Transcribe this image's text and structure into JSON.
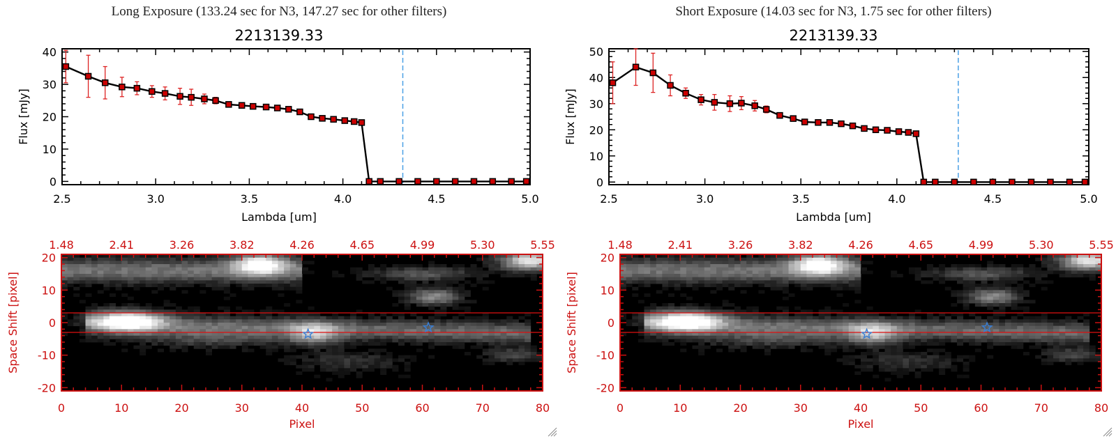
{
  "chart_data": [
    {
      "type": "line",
      "title": "Long Exposure (133.24 sec for N3, 147.27 sec for other filters)",
      "subtitle": "2213139.33",
      "xlabel": "Lambda [um]",
      "ylabel": "Flux [mJy]",
      "xlim": [
        2.5,
        5.0
      ],
      "ylim": [
        -1,
        41
      ],
      "xticks": [
        "2.5",
        "3.0",
        "3.5",
        "4.0",
        "4.5",
        "5.0"
      ],
      "yticks": [
        "0",
        "10",
        "20",
        "30",
        "40"
      ],
      "vline_x": 4.32,
      "grid": false,
      "line_color": "#000000",
      "marker_color": "#cc0000",
      "error_color": "#dd2222",
      "vline_color": "#4aa0e6",
      "x": [
        2.52,
        2.64,
        2.73,
        2.82,
        2.9,
        2.98,
        3.05,
        3.13,
        3.19,
        3.26,
        3.32,
        3.39,
        3.46,
        3.52,
        3.59,
        3.65,
        3.71,
        3.77,
        3.83,
        3.89,
        3.95,
        4.01,
        4.06,
        4.1,
        4.14,
        4.2,
        4.3,
        4.4,
        4.5,
        4.6,
        4.7,
        4.8,
        4.9,
        4.98
      ],
      "y": [
        35.5,
        32.5,
        30.5,
        29.2,
        28.8,
        27.8,
        27.2,
        26.3,
        26.0,
        25.5,
        25.0,
        23.8,
        23.5,
        23.2,
        23.0,
        22.7,
        22.3,
        21.5,
        20.0,
        19.5,
        19.2,
        18.8,
        18.5,
        18.2,
        0,
        0,
        0,
        0,
        0,
        0,
        0,
        0,
        0,
        0
      ],
      "err": [
        5,
        6.5,
        5,
        3,
        2,
        1.8,
        2,
        2.5,
        2.5,
        1.5,
        1,
        0.8,
        0.6,
        0.5,
        0.5,
        0.5,
        0.5,
        0.5,
        0.4,
        0.4,
        0.4,
        0.4,
        0.4,
        0.4,
        0,
        0,
        0,
        0,
        0,
        0,
        0,
        0,
        0,
        0
      ]
    },
    {
      "type": "line",
      "title": "Short Exposure (14.03 sec for N3, 1.75 sec for other filters)",
      "subtitle": "2213139.33",
      "xlabel": "Lambda [um]",
      "ylabel": "Flux [mJy]",
      "xlim": [
        2.5,
        5.0
      ],
      "ylim": [
        -1,
        51
      ],
      "xticks": [
        "2.5",
        "3.0",
        "3.5",
        "4.0",
        "4.5",
        "5.0"
      ],
      "yticks": [
        "0",
        "10",
        "20",
        "30",
        "40",
        "50"
      ],
      "vline_x": 4.32,
      "grid": false,
      "line_color": "#000000",
      "marker_color": "#cc0000",
      "error_color": "#dd2222",
      "vline_color": "#4aa0e6",
      "x": [
        2.52,
        2.64,
        2.73,
        2.82,
        2.9,
        2.98,
        3.05,
        3.13,
        3.19,
        3.26,
        3.32,
        3.39,
        3.46,
        3.52,
        3.59,
        3.65,
        3.71,
        3.77,
        3.83,
        3.89,
        3.95,
        4.01,
        4.06,
        4.1,
        4.14,
        4.2,
        4.3,
        4.4,
        4.5,
        4.6,
        4.7,
        4.8,
        4.9,
        4.98
      ],
      "y": [
        38.0,
        44.0,
        41.8,
        37.0,
        34.0,
        31.5,
        30.5,
        30.0,
        30.2,
        29.2,
        27.8,
        25.5,
        24.3,
        23.0,
        22.8,
        22.8,
        22.3,
        21.5,
        20.5,
        20.0,
        19.8,
        19.3,
        19.0,
        18.5,
        0,
        0,
        0,
        0,
        0,
        0,
        0,
        0,
        0,
        0
      ],
      "err": [
        8,
        7,
        7.5,
        4,
        2,
        2,
        3,
        3,
        2.5,
        2,
        1.3,
        1,
        0.7,
        0.6,
        0.5,
        0.5,
        0.5,
        0.5,
        0.4,
        0.4,
        0.4,
        0.4,
        0.4,
        0.4,
        0,
        0,
        0,
        0,
        0,
        0,
        0,
        0,
        0,
        0
      ]
    },
    {
      "type": "heatmap",
      "xlabel": "Pixel",
      "ylabel": "Space Shift [pixel]",
      "xlim": [
        0,
        80
      ],
      "ylim": [
        -21,
        21
      ],
      "xticks": [
        "0",
        "10",
        "20",
        "30",
        "40",
        "50",
        "60",
        "70",
        "80"
      ],
      "yticks": [
        "20",
        "10",
        "0",
        "-10",
        "-20"
      ],
      "top_ticks": [
        "1.48",
        "2.41",
        "3.26",
        "3.82",
        "4.26",
        "4.65",
        "4.99",
        "5.30",
        "5.55"
      ],
      "axis_color": "#cc1111",
      "lines_y": [
        3,
        -3
      ],
      "stars": [
        {
          "x": 41,
          "y": -3.5
        },
        {
          "x": 61,
          "y": -1.5
        }
      ],
      "star_color": "#3a7fd5",
      "colormap": "gray"
    },
    {
      "type": "heatmap",
      "xlabel": "Pixel",
      "ylabel": "Space Shift [pixel]",
      "xlim": [
        0,
        80
      ],
      "ylim": [
        -21,
        21
      ],
      "xticks": [
        "0",
        "10",
        "20",
        "30",
        "40",
        "50",
        "60",
        "70",
        "80"
      ],
      "yticks": [
        "20",
        "10",
        "0",
        "-10",
        "-20"
      ],
      "top_ticks": [
        "1.48",
        "2.41",
        "3.26",
        "3.82",
        "4.26",
        "4.65",
        "4.99",
        "5.30",
        "5.55"
      ],
      "axis_color": "#cc1111",
      "lines_y": [
        3,
        -3
      ],
      "stars": [
        {
          "x": 41,
          "y": -3.5
        },
        {
          "x": 61,
          "y": -1.5
        }
      ],
      "star_color": "#3a7fd5",
      "colormap": "gray"
    }
  ]
}
